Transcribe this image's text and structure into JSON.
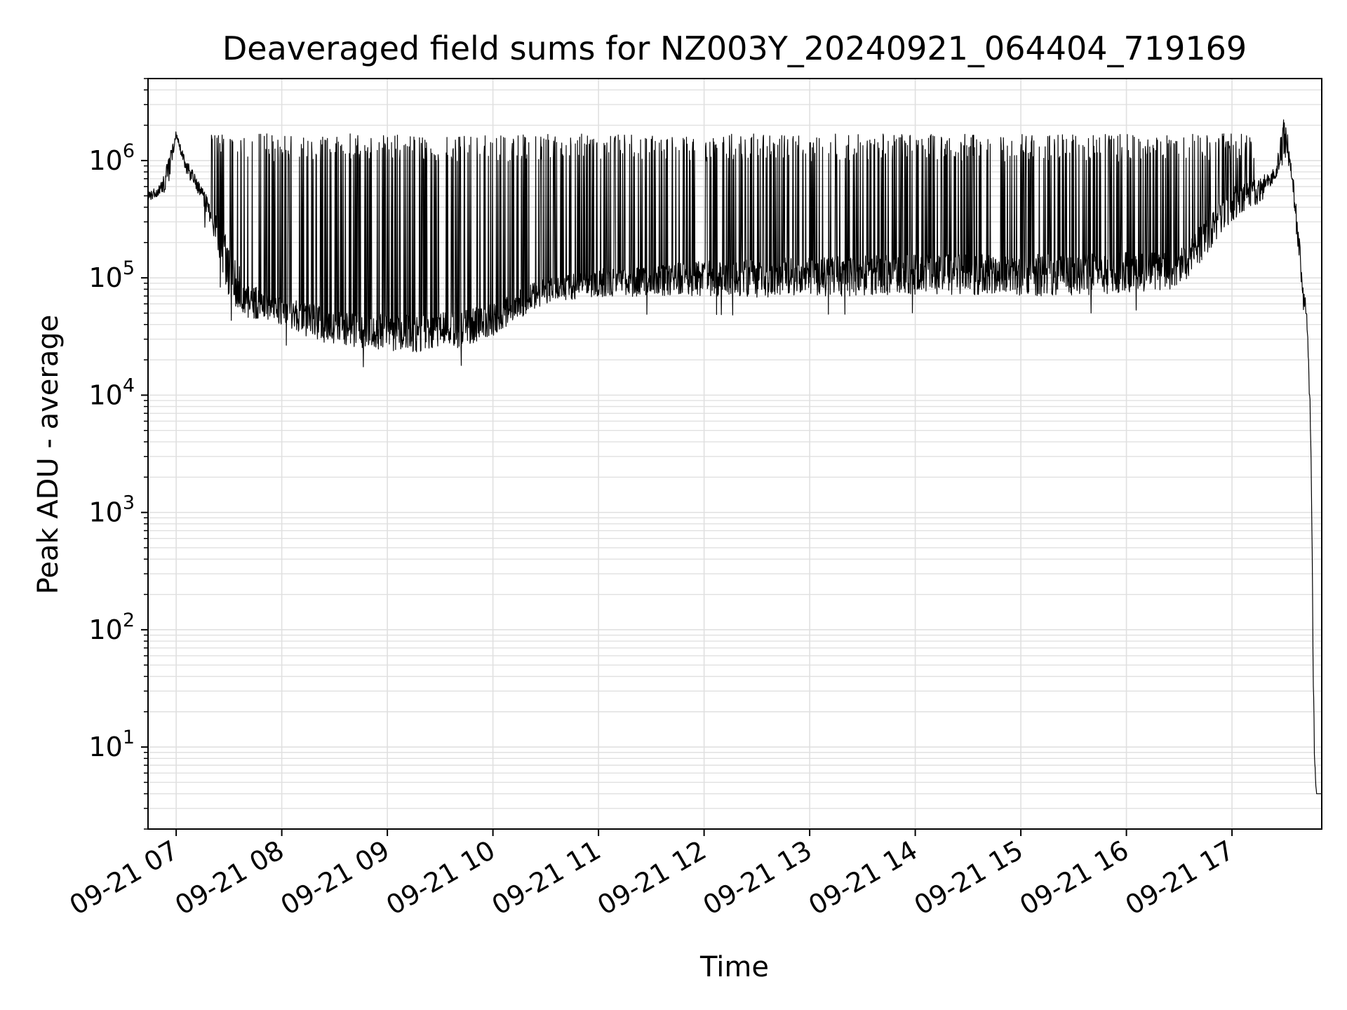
{
  "chart_data": {
    "type": "line",
    "title": "Deaveraged field sums for NZ003Y_20240921_064404_719169",
    "xlabel": "Time",
    "ylabel": "Peak ADU - average",
    "yscale": "log",
    "ylim": [
      2,
      5000000
    ],
    "xlim": [
      "09-21 06:44",
      "09-21 17:51"
    ],
    "grid": "major and minor, light gray",
    "legend": "none",
    "line_color": "#000000",
    "grid_color": "#e0e0e0",
    "x_ticks": [
      "09-21 07",
      "09-21 08",
      "09-21 09",
      "09-21 10",
      "09-21 11",
      "09-21 12",
      "09-21 13",
      "09-21 14",
      "09-21 15",
      "09-21 16",
      "09-21 17"
    ],
    "y_ticks": [
      {
        "base": "10",
        "exp": "1",
        "value": 10
      },
      {
        "base": "10",
        "exp": "2",
        "value": 100
      },
      {
        "base": "10",
        "exp": "3",
        "value": 1000
      },
      {
        "base": "10",
        "exp": "4",
        "value": 10000
      },
      {
        "base": "10",
        "exp": "5",
        "value": 100000
      },
      {
        "base": "10",
        "exp": "6",
        "value": 1000000
      }
    ],
    "series": [
      {
        "name": "",
        "baseline": {
          "time": [
            "06:44",
            "06:50",
            "06:55",
            "07:00",
            "07:05",
            "07:10",
            "07:15",
            "07:20",
            "07:25",
            "07:30",
            "07:40",
            "07:50",
            "08:00",
            "08:15",
            "08:30",
            "08:45",
            "09:00",
            "09:15",
            "09:30",
            "09:45",
            "10:00",
            "10:15",
            "10:30",
            "10:45",
            "11:00",
            "11:30",
            "12:00",
            "12:30",
            "13:00",
            "13:30",
            "14:00",
            "14:30",
            "15:00",
            "15:30",
            "16:00",
            "16:30",
            "17:00",
            "17:15",
            "17:25",
            "17:30",
            "17:34",
            "17:37",
            "17:40",
            "17:43",
            "17:45",
            "17:46",
            "17:47",
            "17:48",
            "17:51"
          ],
          "low": [
            450000,
            500000,
            550000,
            1600000,
            800000,
            600000,
            450000,
            250000,
            120000,
            65000,
            45000,
            45000,
            40000,
            30000,
            27000,
            25000,
            24000,
            23000,
            24000,
            26000,
            32000,
            45000,
            60000,
            65000,
            68000,
            70000,
            70000,
            68000,
            70000,
            70000,
            72000,
            72000,
            70000,
            70000,
            75000,
            80000,
            300000,
            400000,
            700000,
            1000000,
            700000,
            200000,
            60000,
            30000,
            2000,
            50,
            6,
            4,
            4
          ],
          "high": [
            550000,
            600000,
            1000000,
            1800000,
            1100000,
            800000,
            600000,
            400000,
            300000,
            200000,
            90000,
            80000,
            70000,
            60000,
            55000,
            50000,
            50000,
            50000,
            50000,
            55000,
            60000,
            80000,
            100000,
            110000,
            120000,
            130000,
            140000,
            145000,
            150000,
            155000,
            160000,
            160000,
            160000,
            160000,
            165000,
            170000,
            600000,
            700000,
            900000,
            2600000,
            900000,
            400000,
            100000,
            50000,
            5000,
            100,
            8,
            4,
            4
          ]
        },
        "spikes": {
          "start": "07:20",
          "end": "17:15",
          "count": 700,
          "typical_peak": 1300000,
          "max_peak": 1700000
        }
      }
    ]
  }
}
